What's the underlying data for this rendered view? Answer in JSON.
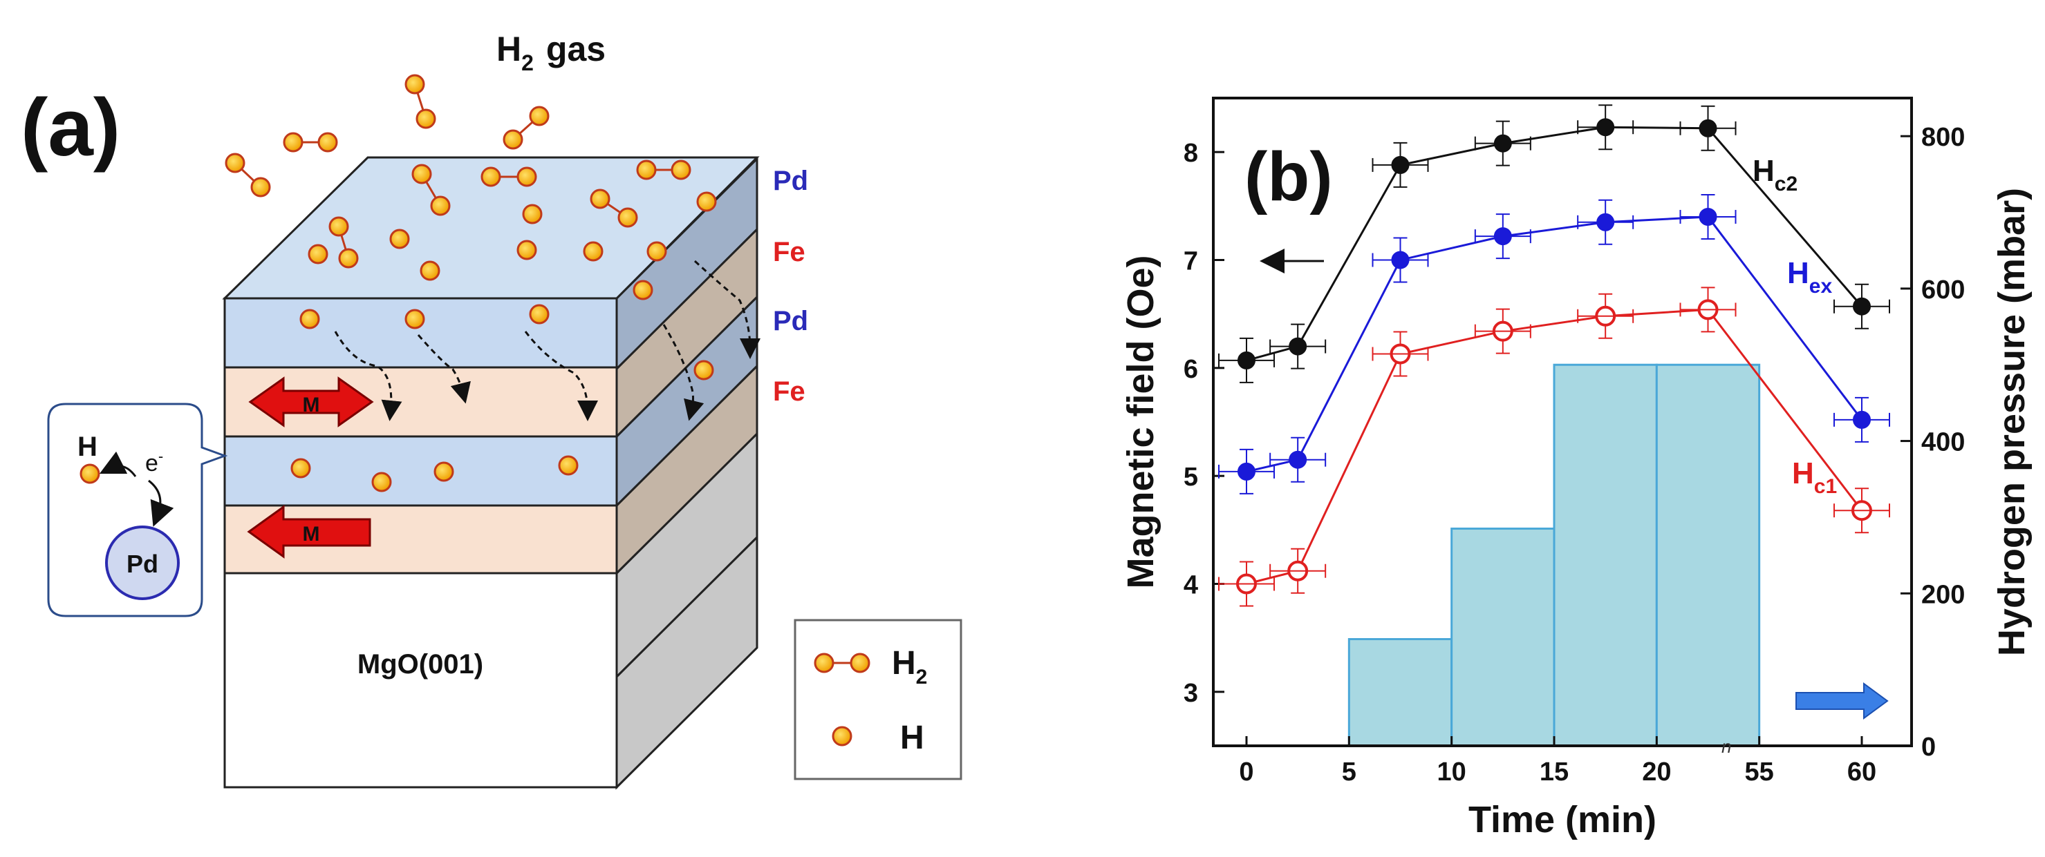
{
  "panel_a": {
    "label": "(a)",
    "gas_label": "H",
    "gas_sub": "2",
    "gas_word": "gas",
    "layers": [
      {
        "name": "Pd",
        "color": "#2a2ab8"
      },
      {
        "name": "Fe",
        "color": "#e02020"
      },
      {
        "name": "Pd",
        "color": "#2a2ab8"
      },
      {
        "name": "Fe",
        "color": "#e02020"
      }
    ],
    "magnet_label": "M",
    "substrate": "MgO(001)",
    "inset": {
      "atom": "H",
      "electron": "e",
      "electron_sup": "-",
      "host": "Pd"
    },
    "legend": [
      {
        "label": "H",
        "sub": "2"
      },
      {
        "label": "H",
        "sub": ""
      }
    ]
  },
  "panel_b": {
    "label": "(b)",
    "break_mark": "n"
  },
  "chart_data": {
    "type": "line",
    "title": "",
    "xlabel": "Time (min)",
    "ylabel": "Magnetic field (Oe)",
    "y2label": "Hydrogen pressure (mbar)",
    "x_ticks": [
      "0",
      "5",
      "10",
      "15",
      "20",
      "55",
      "60"
    ],
    "x_tick_values": [
      0,
      5,
      10,
      15,
      20,
      25,
      30
    ],
    "ylim": [
      2.5,
      8.5
    ],
    "y_ticks": [
      3,
      4,
      5,
      6,
      7,
      8
    ],
    "y2lim": [
      0,
      850
    ],
    "y2_ticks": [
      0,
      200,
      400,
      600,
      800
    ],
    "x_axis_break": "between 20 and 55 min",
    "x_positions": [
      0,
      2.5,
      7.5,
      12.5,
      17.5,
      22.5,
      30
    ],
    "series": [
      {
        "name": "Hc2",
        "label": "H",
        "sub": "c2",
        "color": "#111111",
        "marker": "filled",
        "values": [
          6.07,
          6.2,
          7.88,
          8.08,
          8.23,
          8.22,
          6.57
        ]
      },
      {
        "name": "Hex",
        "label": "H",
        "sub": "ex",
        "color": "#1a1ad8",
        "marker": "filled",
        "values": [
          5.04,
          5.15,
          7.0,
          7.22,
          7.35,
          7.4,
          5.52
        ]
      },
      {
        "name": "Hc1",
        "label": "H",
        "sub": "c1",
        "color": "#e02020",
        "marker": "open",
        "values": [
          4.0,
          4.12,
          6.13,
          6.34,
          6.48,
          6.54,
          4.68
        ]
      }
    ],
    "pressure_bars": [
      {
        "x_start": 5,
        "x_end": 10,
        "value": 140
      },
      {
        "x_start": 10,
        "x_end": 15,
        "value": 285
      },
      {
        "x_start": 15,
        "x_end": 20,
        "value": 500
      },
      {
        "x_start": 20,
        "x_end": 25,
        "value": 500
      }
    ],
    "annotations": [
      "left arrow points to left axis",
      "right arrow points to right axis"
    ]
  }
}
